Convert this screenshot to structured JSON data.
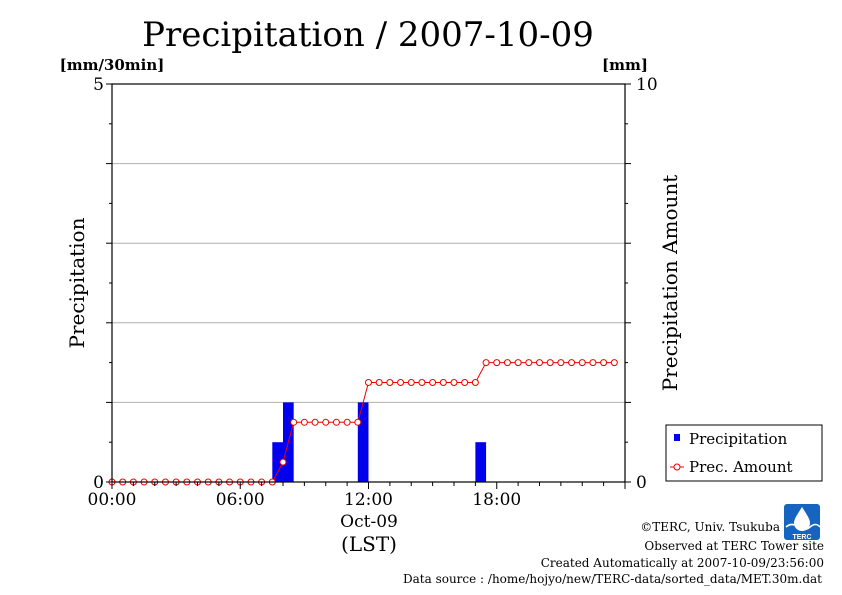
{
  "chart_data": {
    "type": "bar",
    "title": "Precipitation / 2007-10-09",
    "left_unit": "[mm/30min]",
    "right_unit": "[mm]",
    "ylabel": "Precipitation",
    "ylabel_right": "Precipitation Amount",
    "xlabel": "(LST)",
    "date_label": "Oct-09",
    "ylim": [
      0,
      5
    ],
    "ylim_right": [
      0,
      10
    ],
    "xlim_hours": [
      0,
      24
    ],
    "y_ticks": [
      {
        "value": 0,
        "label": "0"
      },
      {
        "value": 5,
        "label": "5"
      }
    ],
    "y_ticks_right": [
      {
        "value": 0,
        "label": "0"
      },
      {
        "value": 10,
        "label": "10"
      }
    ],
    "x_ticks": [
      {
        "hour": 0,
        "label": "00:00"
      },
      {
        "hour": 6,
        "label": "06:00"
      },
      {
        "hour": 12,
        "label": "12:00"
      },
      {
        "hour": 18,
        "label": "18:00"
      }
    ],
    "grid": true,
    "legend_position": "bottom-right",
    "series": [
      {
        "name": "Precipitation",
        "type": "bar",
        "axis": "left",
        "color": "#0000ee",
        "times": [
          "07:30",
          "08:00",
          "11:30",
          "17:00"
        ],
        "values": [
          0.5,
          1.0,
          1.0,
          0.5
        ]
      },
      {
        "name": "Prec. Amount",
        "type": "line",
        "axis": "right",
        "color": "#ee0000",
        "times": [
          "00:00",
          "00:30",
          "01:00",
          "01:30",
          "02:00",
          "02:30",
          "03:00",
          "03:30",
          "04:00",
          "04:30",
          "05:00",
          "05:30",
          "06:00",
          "06:30",
          "07:00",
          "07:30",
          "08:00",
          "08:30",
          "09:00",
          "09:30",
          "10:00",
          "10:30",
          "11:00",
          "11:30",
          "12:00",
          "12:30",
          "13:00",
          "13:30",
          "14:00",
          "14:30",
          "15:00",
          "15:30",
          "16:00",
          "16:30",
          "17:00",
          "17:30",
          "18:00",
          "18:30",
          "19:00",
          "19:30",
          "20:00",
          "20:30",
          "21:00",
          "21:30",
          "22:00",
          "22:30",
          "23:00",
          "23:30"
        ],
        "values": [
          0,
          0,
          0,
          0,
          0,
          0,
          0,
          0,
          0,
          0,
          0,
          0,
          0,
          0,
          0,
          0,
          0.5,
          1.5,
          1.5,
          1.5,
          1.5,
          1.5,
          1.5,
          1.5,
          2.5,
          2.5,
          2.5,
          2.5,
          2.5,
          2.5,
          2.5,
          2.5,
          2.5,
          2.5,
          2.5,
          3.0,
          3.0,
          3.0,
          3.0,
          3.0,
          3.0,
          3.0,
          3.0,
          3.0,
          3.0,
          3.0,
          3.0,
          3.0
        ]
      }
    ]
  },
  "credits": [
    "©TERC, Univ. Tsukuba",
    "Observed at TERC Tower site",
    "Created Automatically at 2007-10-09/23:56:00",
    "Data source : /home/hojyo/new/TERC-data/sorted_data/MET.30m.dat"
  ],
  "logo_text": "TERC"
}
